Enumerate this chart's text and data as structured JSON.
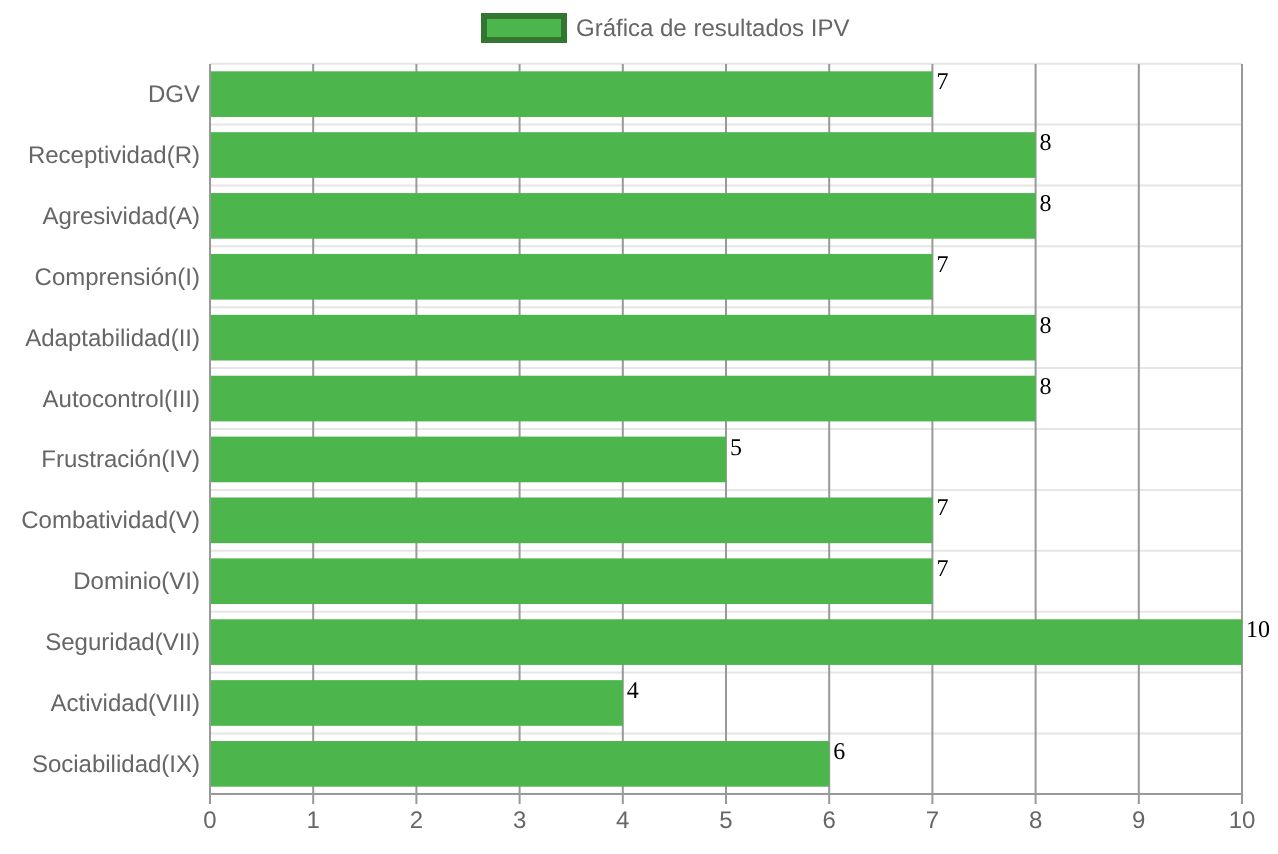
{
  "chart_data": {
    "type": "bar",
    "orientation": "horizontal",
    "categories": [
      "DGV",
      "Receptividad(R)",
      "Agresividad(A)",
      "Comprensión(I)",
      "Adaptabilidad(II)",
      "Autocontrol(III)",
      "Frustración(IV)",
      "Combatividad(V)",
      "Dominio(VI)",
      "Seguridad(VII)",
      "Actividad(VIII)",
      "Sociabilidad(IX)"
    ],
    "series": [
      {
        "name": "Gráfica de resultados IPV",
        "color": "#4cb54c",
        "values": [
          7,
          8,
          8,
          7,
          8,
          8,
          5,
          7,
          7,
          10,
          4,
          6
        ]
      }
    ],
    "xlim": [
      0,
      10
    ],
    "xticks": [
      0,
      1,
      2,
      3,
      4,
      5,
      6,
      7,
      8,
      9,
      10
    ],
    "grid": true,
    "legend": "top",
    "data_labels": true
  }
}
